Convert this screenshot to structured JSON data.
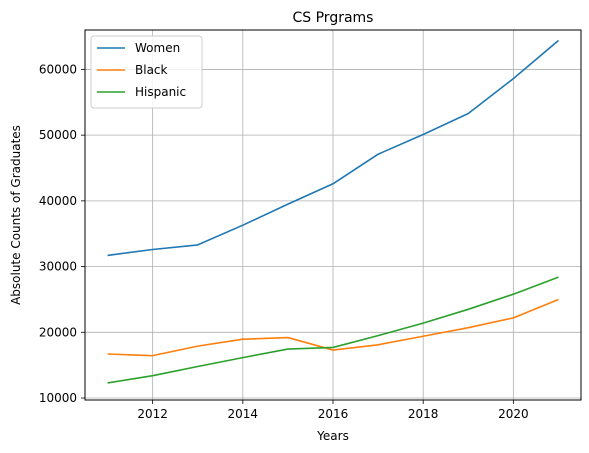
{
  "chart_data": {
    "type": "line",
    "title": "CS Prgrams",
    "xlabel": "Years",
    "ylabel": "Absolute Counts of Graduates",
    "x": [
      2011,
      2012,
      2013,
      2014,
      2015,
      2016,
      2017,
      2018,
      2019,
      2020,
      2021
    ],
    "xlim": [
      2010.5,
      2021.5
    ],
    "ylim": [
      9700,
      66000
    ],
    "xticks": [
      2012,
      2014,
      2016,
      2018,
      2020
    ],
    "yticks": [
      10000,
      20000,
      30000,
      40000,
      50000,
      60000
    ],
    "grid": true,
    "legend_position": "upper left",
    "series": [
      {
        "name": "Women",
        "color": "#1f77b4",
        "values": [
          31700,
          32600,
          33300,
          36300,
          39500,
          42600,
          47100,
          50100,
          53300,
          58600,
          64400
        ]
      },
      {
        "name": "Black",
        "color": "#ff7f0e",
        "values": [
          16700,
          16450,
          17900,
          18950,
          19200,
          17300,
          18100,
          19400,
          20700,
          22200,
          25000
        ]
      },
      {
        "name": "Hispanic",
        "color": "#2ca02c",
        "values": [
          12300,
          13400,
          14800,
          16150,
          17450,
          17700,
          19500,
          21400,
          23500,
          25800,
          28400
        ]
      }
    ]
  }
}
